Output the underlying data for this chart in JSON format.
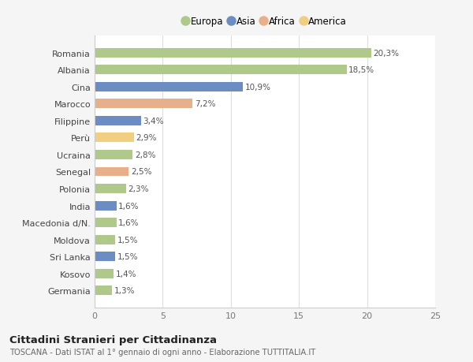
{
  "categories": [
    "Romania",
    "Albania",
    "Cina",
    "Marocco",
    "Filippine",
    "Perù",
    "Ucraina",
    "Senegal",
    "Polonia",
    "India",
    "Macedonia d/N.",
    "Moldova",
    "Sri Lanka",
    "Kosovo",
    "Germania"
  ],
  "values": [
    20.3,
    18.5,
    10.9,
    7.2,
    3.4,
    2.9,
    2.8,
    2.5,
    2.3,
    1.6,
    1.6,
    1.5,
    1.5,
    1.4,
    1.3
  ],
  "labels": [
    "20,3%",
    "18,5%",
    "10,9%",
    "7,2%",
    "3,4%",
    "2,9%",
    "2,8%",
    "2,5%",
    "2,3%",
    "1,6%",
    "1,6%",
    "1,5%",
    "1,5%",
    "1,4%",
    "1,3%"
  ],
  "colors": [
    "#aec98a",
    "#aec98a",
    "#6b8dc4",
    "#e8b08a",
    "#6b8dc4",
    "#f0d080",
    "#aec98a",
    "#e8b08a",
    "#aec98a",
    "#6b8dc4",
    "#aec98a",
    "#aec98a",
    "#6b8dc4",
    "#aec98a",
    "#aec98a"
  ],
  "legend": [
    {
      "label": "Europa",
      "color": "#aec98a"
    },
    {
      "label": "Asia",
      "color": "#6b8dc4"
    },
    {
      "label": "Africa",
      "color": "#e8b08a"
    },
    {
      "label": "America",
      "color": "#f0d080"
    }
  ],
  "xlim": [
    0,
    25
  ],
  "xticks": [
    0,
    5,
    10,
    15,
    20,
    25
  ],
  "title": "Cittadini Stranieri per Cittadinanza",
  "subtitle": "TOSCANA - Dati ISTAT al 1° gennaio di ogni anno - Elaborazione TUTTITALIA.IT",
  "background_color": "#f5f5f5",
  "bar_background": "#ffffff",
  "grid_color": "#dddddd",
  "bar_height": 0.55,
  "label_fontsize": 7.5,
  "tick_fontsize": 8,
  "legend_fontsize": 8.5
}
